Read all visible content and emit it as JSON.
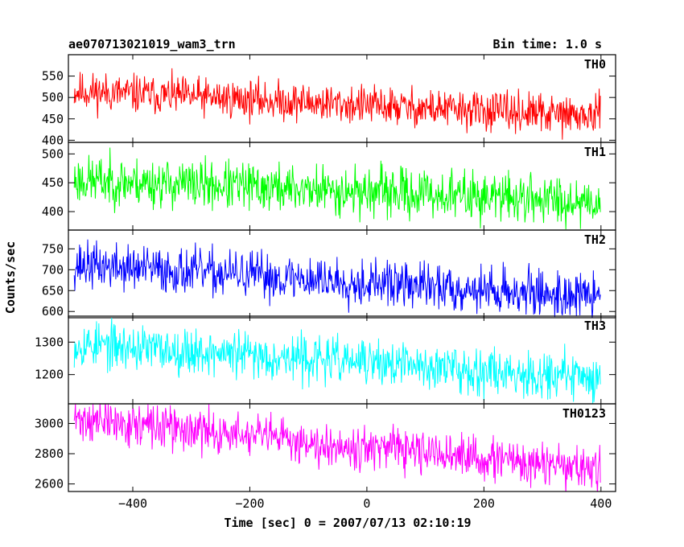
{
  "header": {
    "title": "ae070713021019_wam3_trn",
    "bin_time": "Bin time: 1.0 s"
  },
  "chart_data": {
    "type": "line",
    "title": "ae070713021019_wam3_trn",
    "subtitle": "Bin time: 1.0 s",
    "xlabel": "Time [sec] 0 = 2007/07/13 02:10:19",
    "ylabel": "Counts/sec",
    "xlim": [
      -510,
      425
    ],
    "x_ticks": [
      -400,
      -200,
      0,
      200,
      400
    ],
    "x_tick_labels": [
      "−400",
      "−200",
      "0",
      "200",
      "400"
    ],
    "bin_time_s": 1.0,
    "x_start": -500,
    "x_end": 399,
    "grid": false,
    "panels": [
      {
        "name": "TH0",
        "color": "#ff0000",
        "ylim": [
          395,
          600
        ],
        "y_ticks": [
          400,
          450,
          500,
          550
        ],
        "y_tick_labels": [
          "400",
          "450",
          "500",
          "550"
        ],
        "trend": {
          "start": 515,
          "end": 455
        },
        "noise_amplitude": 45,
        "seed": 11
      },
      {
        "name": "TH1",
        "color": "#00ff00",
        "ylim": [
          368,
          520
        ],
        "y_ticks": [
          400,
          450,
          500
        ],
        "y_tick_labels": [
          "400",
          "450",
          "500"
        ],
        "trend": {
          "start": 455,
          "end": 418
        },
        "noise_amplitude": 42,
        "seed": 23
      },
      {
        "name": "TH2",
        "color": "#0000ff",
        "ylim": [
          585,
          795
        ],
        "y_ticks": [
          600,
          650,
          700,
          750
        ],
        "y_tick_labels": [
          "600",
          "650",
          "700",
          "750"
        ],
        "trend": {
          "start": 712,
          "end": 635
        },
        "noise_amplitude": 55,
        "seed": 37
      },
      {
        "name": "TH3",
        "color": "#00ffff",
        "ylim": [
          1110,
          1380
        ],
        "y_ticks": [
          1200,
          1300
        ],
        "y_tick_labels": [
          "1200",
          "1300"
        ],
        "trend": {
          "start": 1295,
          "end": 1190
        },
        "noise_amplitude": 70,
        "seed": 53
      },
      {
        "name": "TH0123",
        "color": "#ff00ff",
        "ylim": [
          2550,
          3130
        ],
        "y_ticks": [
          2600,
          2800,
          3000
        ],
        "y_tick_labels": [
          "2600",
          "2800",
          "3000"
        ],
        "trend": {
          "start": 3030,
          "end": 2690
        },
        "noise_amplitude": 140,
        "seed": 71
      }
    ]
  }
}
